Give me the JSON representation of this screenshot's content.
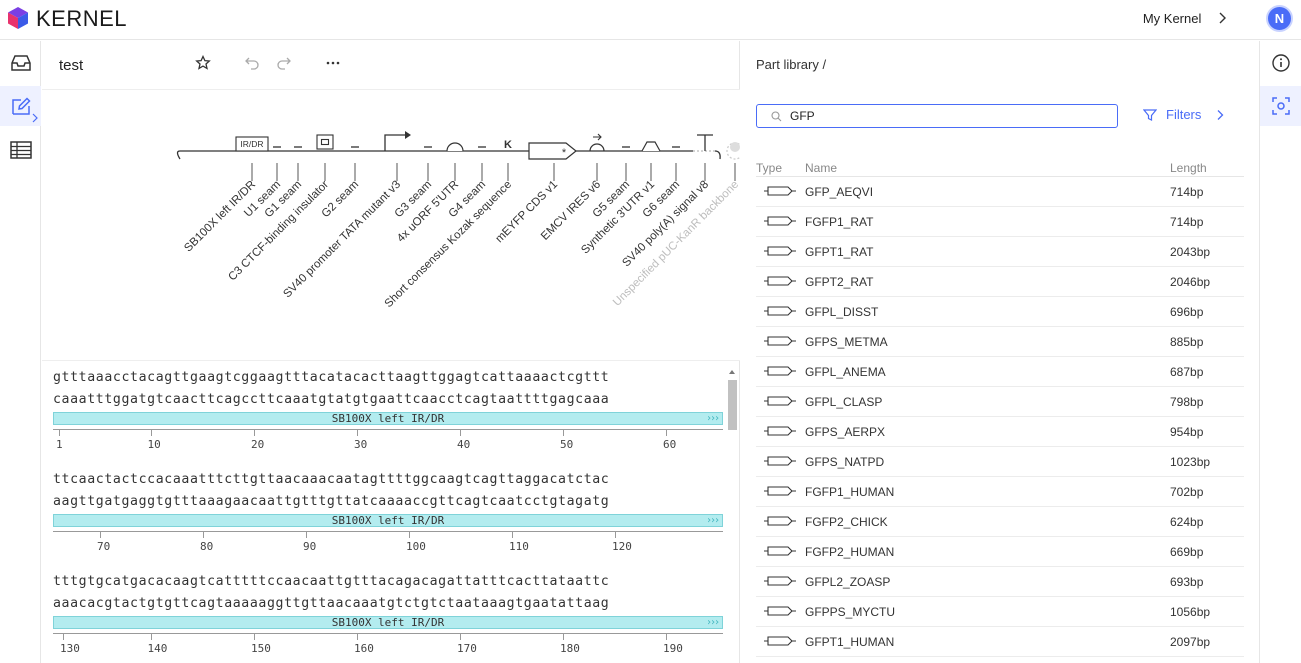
{
  "app": {
    "brand": "KERNEL",
    "account_link": "My Kernel",
    "avatar_initial": "N"
  },
  "editor": {
    "title": "test",
    "map": {
      "features": [
        {
          "label": "SB100X left IR/DR",
          "glyph": "box-text",
          "glyph_text": "IR/DR",
          "muted": false
        },
        {
          "label": "U1 seam",
          "glyph": "dash",
          "muted": false
        },
        {
          "label": "G1 seam",
          "glyph": "dash",
          "muted": false
        },
        {
          "label": "C3 CTCF-binding insulator",
          "glyph": "insulator",
          "muted": false
        },
        {
          "label": "G2 seam",
          "glyph": "dash",
          "muted": false
        },
        {
          "label": "SV40 promoter TATA mutant v3",
          "glyph": "promoter",
          "muted": false
        },
        {
          "label": "G3 seam",
          "glyph": "dash",
          "muted": false
        },
        {
          "label": "4x uORF 5'UTR",
          "glyph": "utr5",
          "muted": false
        },
        {
          "label": "G4 seam",
          "glyph": "dash",
          "muted": false
        },
        {
          "label": "Short consensus Kozak sequence",
          "glyph": "kozak",
          "glyph_text": "K",
          "muted": false
        },
        {
          "label": "mEYFP CDS v1",
          "glyph": "cds",
          "muted": false
        },
        {
          "label": "EMCV IRES v6",
          "glyph": "ires",
          "muted": false
        },
        {
          "label": "G5 seam",
          "glyph": "dash",
          "muted": false
        },
        {
          "label": "Synthetic 3'UTR v1",
          "glyph": "utr3",
          "muted": false
        },
        {
          "label": "G6 seam",
          "glyph": "dash",
          "muted": false
        },
        {
          "label": "SV40 poly(A) signal v8",
          "glyph": "terminator",
          "muted": false
        },
        {
          "label": "Unspecified pUC-KanR backbone",
          "glyph": "backbone",
          "muted": true
        }
      ]
    },
    "sequence_blocks": [
      {
        "top": "gtttaaacctacagttgaagtcggaagtttacatacacttaagttggagtcattaaaactcgttt",
        "bottom": "caaatttggatgtcaacttcagccttcaaatgtatgtgaattcaacctcagtaattttgagcaaa",
        "annotation": "SB100X left IR/DR",
        "ruler_labels": [
          "1",
          "10",
          "20",
          "30",
          "40",
          "50",
          "60"
        ]
      },
      {
        "top": "ttcaactactccacaaatttcttgttaacaaacaatagttttggcaagtcagttaggacatctac",
        "bottom": "aagttgatgaggtgtttaaagaacaattgtttgttatcaaaaccgttcagtcaatcctgtagatg",
        "annotation": "SB100X left IR/DR",
        "ruler_labels": [
          "70",
          "80",
          "90",
          "100",
          "110",
          "120"
        ]
      },
      {
        "top": "tttgtgcatgacacaagtcatttttccaacaattgtttacagacagattatttcacttataattc",
        "bottom": "aaacacgtactgtgttcagtaaaaaggttgttaacaaatgtctgtctaataaagtgaatattaag",
        "annotation": "SB100X left IR/DR",
        "ruler_labels": [
          "130",
          "140",
          "150",
          "160",
          "170",
          "180",
          "190"
        ]
      }
    ]
  },
  "library": {
    "breadcrumb": "Part library /",
    "search_value": "GFP",
    "filters_label": "Filters",
    "columns": {
      "type": "Type",
      "name": "Name",
      "length": "Length"
    },
    "rows": [
      {
        "name": "GFP_AEQVI",
        "length": "714bp"
      },
      {
        "name": "FGFP1_RAT",
        "length": "714bp"
      },
      {
        "name": "GFPT1_RAT",
        "length": "2043bp"
      },
      {
        "name": "GFPT2_RAT",
        "length": "2046bp"
      },
      {
        "name": "GFPL_DISST",
        "length": "696bp"
      },
      {
        "name": "GFPS_METMA",
        "length": "885bp"
      },
      {
        "name": "GFPL_ANEMA",
        "length": "687bp"
      },
      {
        "name": "GFPL_CLASP",
        "length": "798bp"
      },
      {
        "name": "GFPS_AERPX",
        "length": "954bp"
      },
      {
        "name": "GFPS_NATPD",
        "length": "1023bp"
      },
      {
        "name": "FGFP1_HUMAN",
        "length": "702bp"
      },
      {
        "name": "FGFP2_CHICK",
        "length": "624bp"
      },
      {
        "name": "FGFP2_HUMAN",
        "length": "669bp"
      },
      {
        "name": "GFPL2_ZOASP",
        "length": "693bp"
      },
      {
        "name": "GFPPS_MYCTU",
        "length": "1056bp"
      },
      {
        "name": "GFPT1_HUMAN",
        "length": "2097bp"
      }
    ]
  },
  "colors": {
    "accent": "#4a6cf7",
    "annotation_fill": "#b3ecef",
    "annotation_border": "#7fd3d9"
  }
}
